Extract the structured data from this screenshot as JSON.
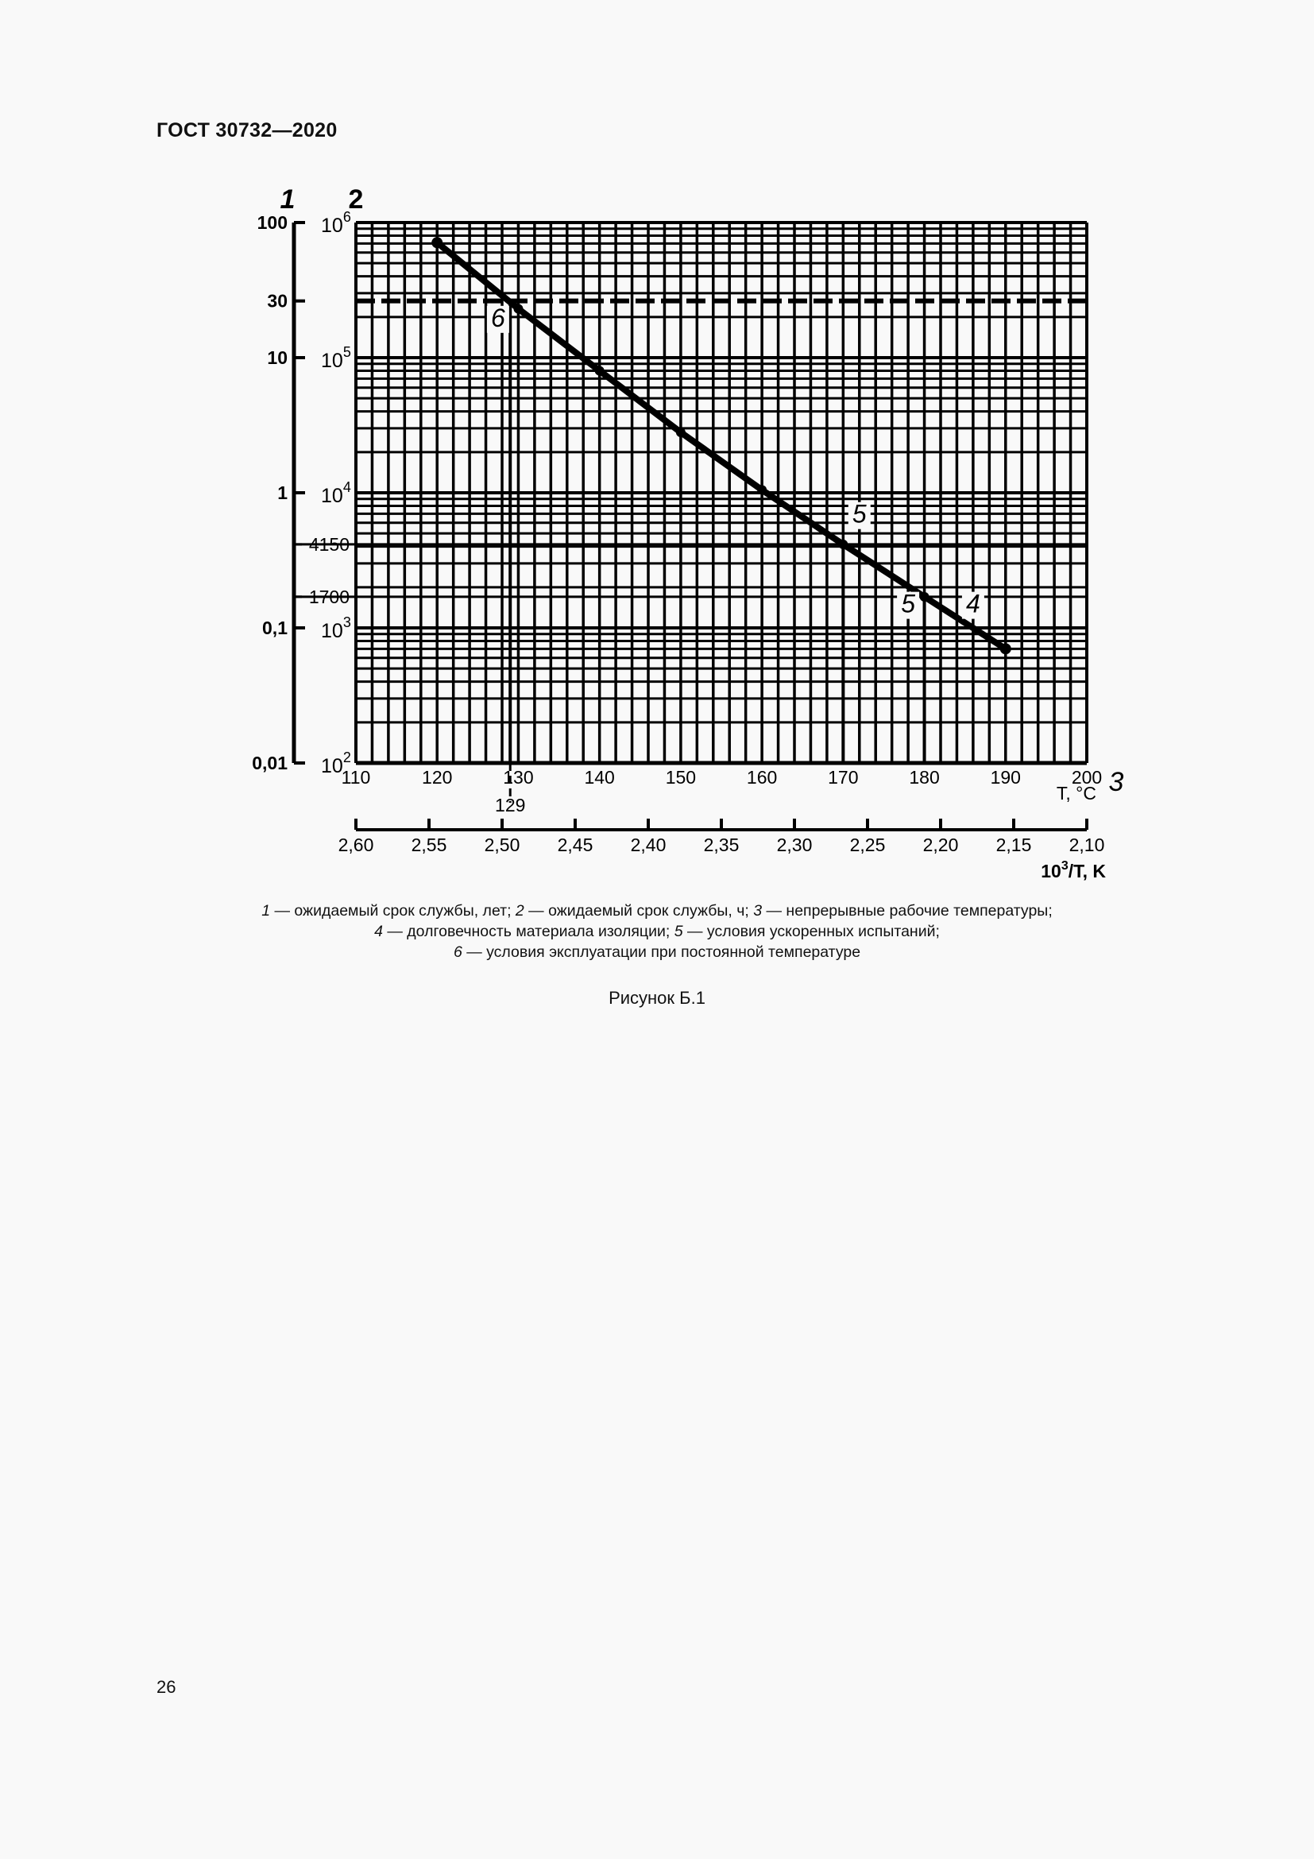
{
  "header": {
    "doc_title": "ГОСТ 30732—2020"
  },
  "chart_data": {
    "type": "line",
    "title": "Рисунок Б.1",
    "x": [
      120,
      130,
      140,
      150,
      160,
      170,
      180,
      190
    ],
    "series": [
      {
        "name": "4 — долговечность материала изоляции",
        "values": [
          710000,
          230000,
          80000,
          28000,
          10500,
          4150,
          1700,
          700
        ]
      }
    ],
    "xlabel": "T, °C",
    "ylabel": "ожидаемый срок службы, ч",
    "xlim": [
      110,
      200
    ],
    "ylim": [
      100,
      1000000
    ],
    "yscale": "log",
    "grid": true,
    "x_ticks": [
      "110",
      "120",
      "130",
      "140",
      "150",
      "160",
      "170",
      "180",
      "190",
      "200"
    ],
    "y_hours_ticks": [
      {
        "label": "10",
        "sup": "6",
        "value": 1000000
      },
      {
        "label": "10",
        "sup": "5",
        "value": 100000
      },
      {
        "label": "10",
        "sup": "4",
        "value": 10000
      },
      {
        "label": "4150",
        "sup": "",
        "value": 4150
      },
      {
        "label": "1700",
        "sup": "",
        "value": 1700
      },
      {
        "label": "10",
        "sup": "3",
        "value": 1000
      },
      {
        "label": "10",
        "sup": "2",
        "value": 100
      }
    ],
    "y_years_ticks": [
      {
        "label": "100",
        "value": 1000000
      },
      {
        "label": "30",
        "value": 262800
      },
      {
        "label": "10",
        "value": 100000
      },
      {
        "label": "1",
        "value": 10000
      },
      {
        "label": "0,1",
        "value": 1000
      },
      {
        "label": "0,01",
        "value": 100
      }
    ],
    "inverse_axis": {
      "label": "10³/T, K",
      "ticks": [
        "2,60",
        "2,55",
        "2,50",
        "2,45",
        "2,40",
        "2,35",
        "2,30",
        "2,25",
        "2,20",
        "2,15",
        "2,10"
      ]
    },
    "annotations": {
      "dashed_line_30_years": 262800,
      "marker_129": "129",
      "drop_lines_T": [
        129,
        170,
        180
      ],
      "curve_labels": [
        {
          "text": "6",
          "T": 127.5,
          "hours": 170000
        },
        {
          "text": "5",
          "T": 172,
          "hours": 6000
        },
        {
          "text": "5",
          "T": 178,
          "hours": 1300
        },
        {
          "text": "4",
          "T": 186,
          "hours": 1300
        }
      ]
    },
    "axis_numbers": {
      "years": "1",
      "hours": "2",
      "temperature": "3"
    }
  },
  "legend": {
    "line1": [
      {
        "num": "1",
        "text": " — ожидаемый срок службы, лет; "
      },
      {
        "num": "2",
        "text": " — ожидаемый срок службы, ч; "
      },
      {
        "num": "3",
        "text": " — непрерывные рабочие температуры;"
      }
    ],
    "line2": [
      {
        "num": "4",
        "text": " — долговечность материала изоляции; "
      },
      {
        "num": "5",
        "text": " — условия ускоренных испытаний;"
      }
    ],
    "line3": [
      {
        "num": "6",
        "text": " — условия эксплуатации при постоянной температуре"
      }
    ]
  },
  "figure_caption": "Рисунок Б.1",
  "page_number": "26"
}
